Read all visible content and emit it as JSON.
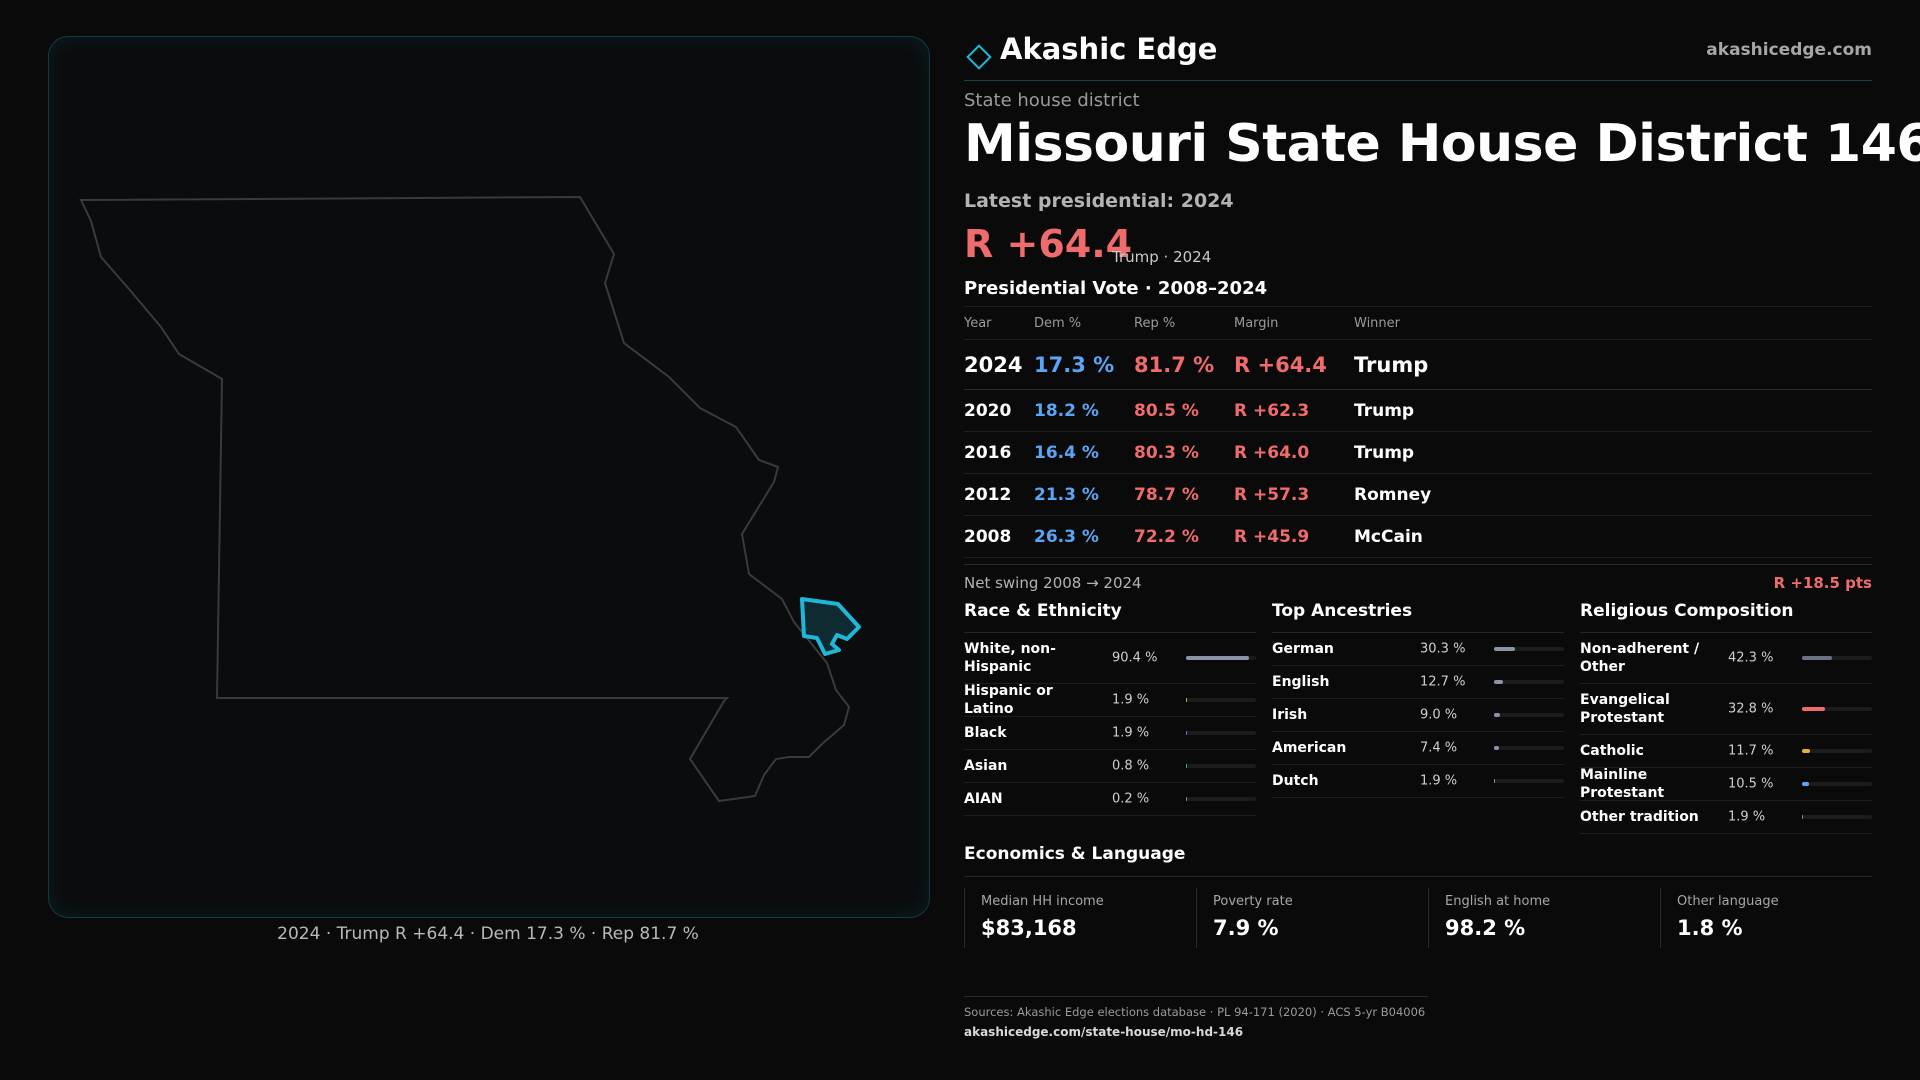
{
  "map": {
    "caption": "2024 · Trump R +64.4 · Dem 17.3 % · Rep 81.7 %"
  },
  "header": {
    "brand": "Akashic Edge",
    "url": "akashicedge.com",
    "kicker": "State house district",
    "title": "Missouri State House District 146",
    "latest": "Latest presidential: 2024",
    "margin": "R +64.4",
    "margin_sub": "Trump · 2024"
  },
  "votes": {
    "title": "Presidential Vote · 2008–2024",
    "headers": [
      "Year",
      "Dem %",
      "Rep %",
      "Margin",
      "Winner"
    ],
    "rows": [
      {
        "year": "2024",
        "dem": "17.3 %",
        "rep": "81.7 %",
        "margin": "R +64.4",
        "winner": "Trump"
      },
      {
        "year": "2020",
        "dem": "18.2 %",
        "rep": "80.5 %",
        "margin": "R +62.3",
        "winner": "Trump"
      },
      {
        "year": "2016",
        "dem": "16.4 %",
        "rep": "80.3 %",
        "margin": "R +64.0",
        "winner": "Trump"
      },
      {
        "year": "2012",
        "dem": "21.3 %",
        "rep": "78.7 %",
        "margin": "R +57.3",
        "winner": "Romney"
      },
      {
        "year": "2008",
        "dem": "26.3 %",
        "rep": "72.2 %",
        "margin": "R +45.9",
        "winner": "McCain"
      }
    ],
    "net_swing_label": "Net swing 2008 → 2024",
    "net_swing_value": "R +18.5 pts"
  },
  "race": {
    "title": "Race & Ethnicity",
    "items": [
      {
        "label": "White, non-Hispanic",
        "value": "90.4 %",
        "pct": 90.4,
        "color": "#8a94a6"
      },
      {
        "label": "Hispanic or Latino",
        "value": "1.9 %",
        "pct": 1.9,
        "color": "#d4a72c"
      },
      {
        "label": "Black",
        "value": "1.9 %",
        "pct": 1.9,
        "color": "#7b68ee"
      },
      {
        "label": "Asian",
        "value": "0.8 %",
        "pct": 0.8,
        "color": "#3cb371"
      },
      {
        "label": "AIAN",
        "value": "0.2 %",
        "pct": 0.2,
        "color": "#888888"
      }
    ]
  },
  "ancestry": {
    "title": "Top Ancestries",
    "items": [
      {
        "label": "German",
        "value": "30.3 %",
        "pct": 30.3,
        "color": "#8a94a6"
      },
      {
        "label": "English",
        "value": "12.7 %",
        "pct": 12.7,
        "color": "#8a94a6"
      },
      {
        "label": "Irish",
        "value": "9.0 %",
        "pct": 9.0,
        "color": "#8a94a6"
      },
      {
        "label": "American",
        "value": "7.4 %",
        "pct": 7.4,
        "color": "#8a94a6"
      },
      {
        "label": "Dutch",
        "value": "1.9 %",
        "pct": 1.9,
        "color": "#8a94a6"
      }
    ]
  },
  "religion": {
    "title": "Religious Composition",
    "items": [
      {
        "label": "Non-adherent / Other",
        "value": "42.3 %",
        "pct": 42.3,
        "color": "#6b7280"
      },
      {
        "label": "Evangelical Protestant",
        "value": "32.8 %",
        "pct": 32.8,
        "color": "#f06b6b"
      },
      {
        "label": "Catholic",
        "value": "11.7 %",
        "pct": 11.7,
        "color": "#e0b23a"
      },
      {
        "label": "Mainline Protestant",
        "value": "10.5 %",
        "pct": 10.5,
        "color": "#5aa6f5"
      },
      {
        "label": "Other tradition",
        "value": "1.9 %",
        "pct": 1.9,
        "color": "#888888"
      }
    ]
  },
  "economics": {
    "title": "Economics & Language",
    "cards": [
      {
        "label": "Median HH income",
        "value": "$83,168"
      },
      {
        "label": "Poverty rate",
        "value": "7.9 %"
      },
      {
        "label": "English at home",
        "value": "98.2 %"
      },
      {
        "label": "Other language",
        "value": "1.8 %"
      }
    ]
  },
  "footer": {
    "sources": "Sources: Akashic Edge elections database · PL 94-171 (2020) · ACS 5-yr B04006",
    "link": "akashicedge.com/state-house/mo-hd-146"
  },
  "colors": {
    "dem": "#5aa6f5",
    "rep": "#f06b6b",
    "accent": "#1fb6d8"
  }
}
